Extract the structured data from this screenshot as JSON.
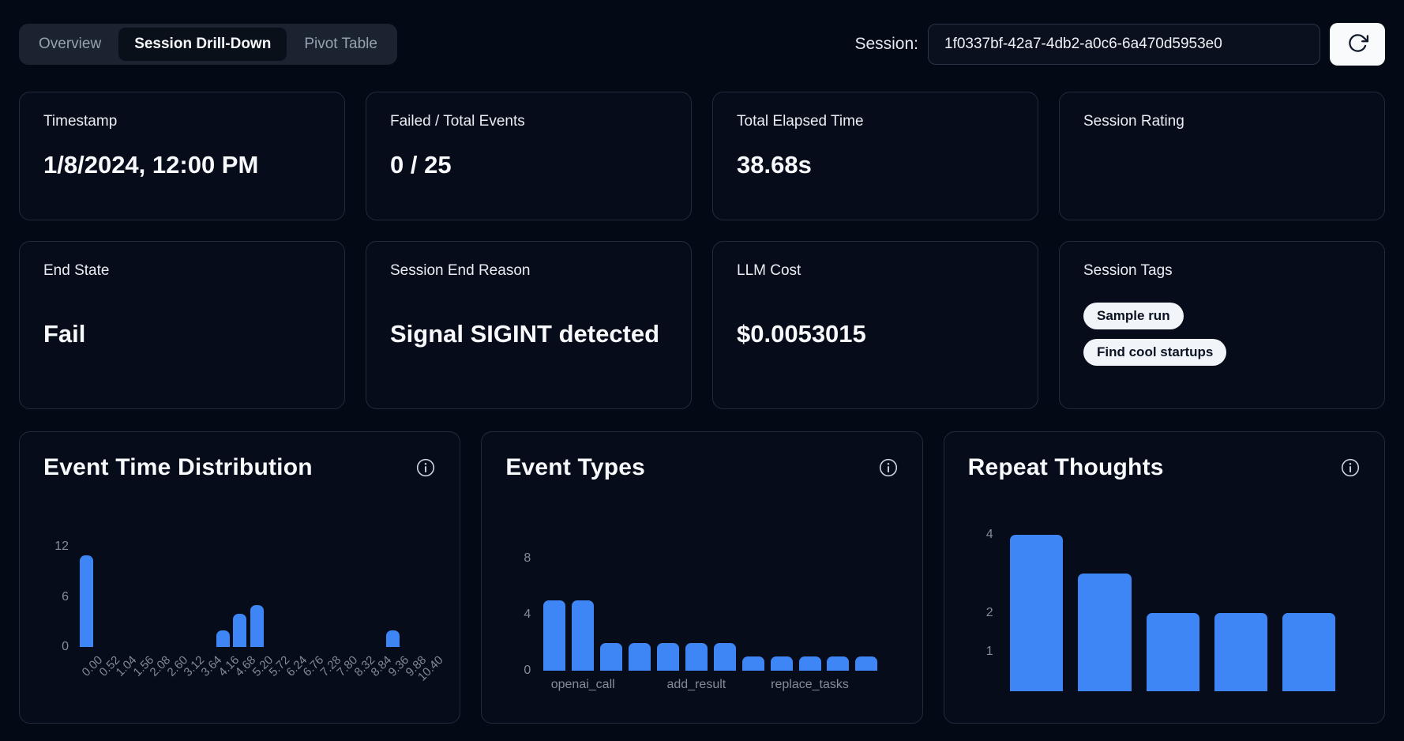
{
  "tabs": [
    {
      "label": "Overview",
      "active": false
    },
    {
      "label": "Session Drill-Down",
      "active": true
    },
    {
      "label": "Pivot Table",
      "active": false
    }
  ],
  "session": {
    "label": "Session:",
    "value": "1f0337bf-42a7-4db2-a0c6-6a470d5953e0"
  },
  "cards": [
    {
      "label": "Timestamp",
      "value": "1/8/2024, 12:00 PM"
    },
    {
      "label": "Failed / Total Events",
      "value": "0 / 25"
    },
    {
      "label": "Total Elapsed Time",
      "value": "38.68s"
    },
    {
      "label": "Session Rating",
      "value": ""
    },
    {
      "label": "End State",
      "value": "Fail"
    },
    {
      "label": "Session End Reason",
      "value": "Signal SIGINT detected"
    },
    {
      "label": "LLM Cost",
      "value": "$0.0053015"
    },
    {
      "label": "Session Tags",
      "tags": [
        "Sample run",
        "Find cool startups"
      ]
    }
  ],
  "colors": {
    "accent": "#3e86f5",
    "background": "#040a15",
    "card": "#060c19",
    "tick_text": "#848c9b"
  },
  "chart_data": [
    {
      "type": "bar",
      "title": "Event Time Distribution",
      "values": [
        11,
        0,
        0,
        0,
        0,
        0,
        0,
        0,
        2,
        4,
        5,
        0,
        0,
        0,
        0,
        0,
        0,
        0,
        2,
        0
      ],
      "x_bin_edges": [
        "0.00",
        "0.52",
        "1.04",
        "1.56",
        "2.08",
        "2.60",
        "3.12",
        "3.64",
        "4.16",
        "4.68",
        "5.20",
        "5.72",
        "6.24",
        "6.76",
        "7.28",
        "7.80",
        "8.32",
        "8.84",
        "9.36",
        "9.88",
        "10.40"
      ],
      "xlabel_rotation": -45,
      "yticks": [
        0,
        6,
        12
      ],
      "ylim": [
        0,
        12.5
      ],
      "grid": false,
      "legend": false
    },
    {
      "type": "bar",
      "title": "Event Types",
      "values": [
        5,
        5,
        2,
        2,
        2,
        2,
        2,
        1,
        1,
        1,
        1,
        1
      ],
      "xticks": [
        {
          "index": 1,
          "label": "openai_call"
        },
        {
          "index": 5,
          "label": "add_result"
        },
        {
          "index": 9,
          "label": "replace_tasks"
        }
      ],
      "yticks": [
        0,
        4,
        8
      ],
      "ylim": [
        0,
        8.8
      ],
      "grid": false,
      "legend": false
    },
    {
      "type": "bar",
      "title": "Repeat Thoughts",
      "values": [
        4,
        3,
        2,
        2,
        2
      ],
      "yticks": [
        1,
        2,
        4
      ],
      "ylim": [
        0,
        4.4
      ],
      "grid": false,
      "legend": false
    }
  ]
}
